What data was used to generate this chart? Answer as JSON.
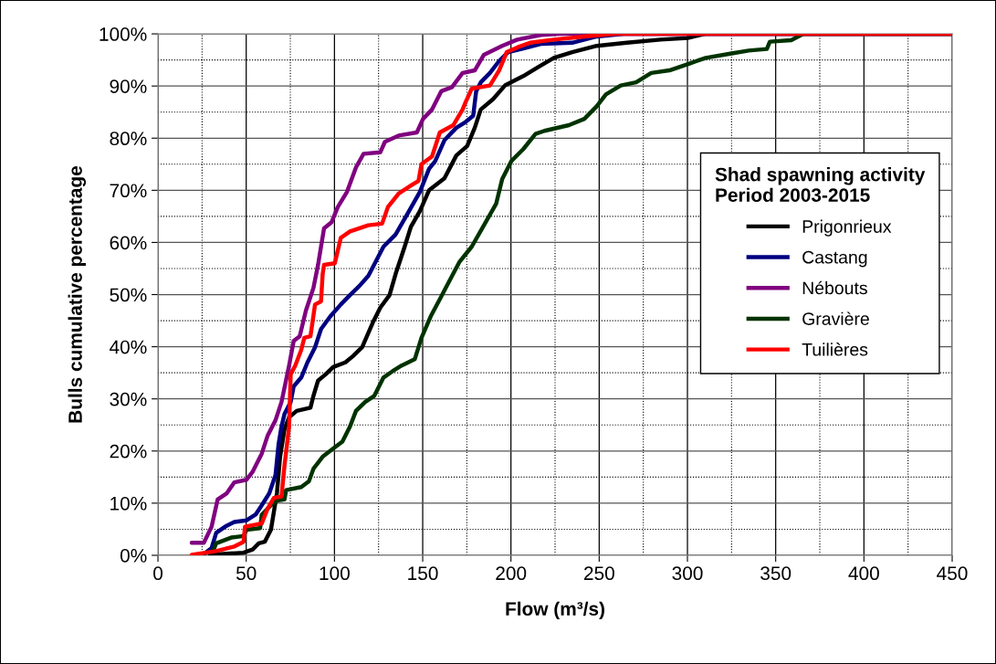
{
  "chart_data": {
    "type": "line",
    "xlabel": "Flow (m³/s)",
    "ylabel": "Bulls cumulative percentage",
    "legend_title": "Shad spawning activity\nPeriod 2003-2015",
    "xlim": [
      0,
      450
    ],
    "xticks": [
      0,
      50,
      100,
      150,
      200,
      250,
      300,
      350,
      400,
      450
    ],
    "ylim": [
      0,
      100
    ],
    "yticks": [
      {
        "value": 0,
        "label": "0%"
      },
      {
        "value": 10,
        "label": "10%"
      },
      {
        "value": 20,
        "label": "20%"
      },
      {
        "value": 30,
        "label": "30%"
      },
      {
        "value": 40,
        "label": "40%"
      },
      {
        "value": 50,
        "label": "50%"
      },
      {
        "value": 60,
        "label": "60%"
      },
      {
        "value": 70,
        "label": "70%"
      },
      {
        "value": 80,
        "label": "80%"
      },
      {
        "value": 90,
        "label": "90%"
      },
      {
        "value": 100,
        "label": "100%"
      }
    ],
    "grid": true,
    "legend": "right",
    "marker": "none",
    "line_style": "solid",
    "series": [
      {
        "name": "Prigonrieux",
        "color": "#000000",
        "x": [
          29.5,
          48.5,
          53.6,
          57.1,
          60.5,
          64,
          65.7,
          67.4,
          69.2,
          71.7,
          74.3,
          78.6,
          86.4,
          88.1,
          90.7,
          95,
          99.3,
          106.2,
          110.5,
          115.7,
          121.7,
          126,
          131.2,
          134.6,
          139.8,
          143.3,
          148.4,
          153.6,
          162.3,
          169.1,
          175.2,
          179.5,
          182.9,
          189.9,
          196.6,
          207,
          215.7,
          224.3,
          234.7,
          248.6,
          265.7,
          284.7,
          300.2,
          310,
          450
        ],
        "values": [
          0.1,
          0.5,
          1.1,
          2.3,
          2.6,
          4.9,
          8.4,
          11.9,
          18.9,
          24.2,
          26.5,
          27.7,
          28.3,
          30.6,
          33.5,
          34.7,
          36.1,
          37,
          38.2,
          39.9,
          44.6,
          47.5,
          49.9,
          53.9,
          59.2,
          63,
          66,
          70,
          72.3,
          76.7,
          78.5,
          82,
          85.5,
          87.5,
          90.1,
          91.9,
          93.7,
          95.4,
          96.5,
          97.7,
          98.3,
          98.9,
          99.2,
          100,
          100
        ]
      },
      {
        "name": "Castang",
        "color": "#000080",
        "x": [
          26,
          30.4,
          33,
          38.1,
          43.3,
          50.2,
          55.3,
          58.8,
          63.1,
          66.6,
          68.3,
          70,
          71.7,
          75.2,
          76.9,
          81.2,
          84.7,
          89,
          92.4,
          97.6,
          103.6,
          108.8,
          114,
          119.2,
          127.8,
          134.6,
          141.6,
          148.4,
          153.6,
          157.1,
          162.3,
          169.1,
          174.3,
          178.6,
          180.3,
          182.9,
          188.1,
          193.3,
          198.4,
          207,
          217.4,
          234.7,
          248.6,
          264,
          450
        ],
        "values": [
          0.2,
          1.4,
          4.3,
          5.5,
          6.4,
          6.7,
          7.8,
          9.6,
          11.9,
          15.4,
          21.2,
          24.7,
          27.1,
          29.4,
          32.4,
          34.1,
          37,
          39.9,
          43.4,
          45.8,
          48.1,
          49.9,
          51.6,
          53.6,
          59.2,
          61.5,
          65.6,
          69.7,
          74.1,
          75.6,
          79.6,
          82,
          83.1,
          84.3,
          89,
          90.7,
          92.5,
          94.8,
          96.5,
          97.2,
          98.1,
          98.3,
          99.5,
          100,
          100
        ]
      },
      {
        "name": "Nébouts",
        "color": "#800080",
        "x": [
          19.1,
          26,
          30.4,
          33.8,
          39,
          43.3,
          50.2,
          53.6,
          58.8,
          62.2,
          66.6,
          70,
          74.3,
          76.9,
          80.3,
          83.8,
          88.1,
          90.7,
          94.1,
          98.4,
          101.9,
          107.1,
          112.2,
          116.5,
          126,
          128.6,
          136.4,
          146.7,
          150.2,
          155.3,
          160.5,
          166.6,
          172.6,
          179.5,
          184.7,
          195,
          203.6,
          217,
          227.6,
          450
        ],
        "values": [
          2.4,
          2.4,
          5.5,
          10.7,
          11.9,
          14,
          14.5,
          16,
          19.5,
          23,
          25.9,
          29.4,
          36.4,
          41.1,
          42,
          46.9,
          51.3,
          55.7,
          62.7,
          63.9,
          66.8,
          69.7,
          74.4,
          77,
          77.3,
          79.3,
          80.5,
          81.1,
          83.7,
          85.5,
          89,
          89.8,
          92.5,
          93,
          96,
          97.7,
          98.9,
          99.8,
          100,
          100
        ]
      },
      {
        "name": "Gravière",
        "color": "#003300",
        "x": [
          31.2,
          33,
          41.5,
          48.5,
          50.2,
          57.9,
          58.8,
          64,
          67.4,
          71.7,
          72.6,
          81.2,
          85.5,
          88.1,
          93.3,
          100.2,
          104.5,
          108.8,
          112.2,
          117.4,
          122.6,
          127.8,
          132.9,
          138.1,
          145.5,
          149.3,
          154.5,
          160,
          165.7,
          170.9,
          177.8,
          184.7,
          191.6,
          195,
          200.2,
          207,
          213.9,
          219,
          232.9,
          241.6,
          248.6,
          253.8,
          262.2,
          270.9,
          279.5,
          289.8,
          301.9,
          310.4,
          324.3,
          334.7,
          345,
          346.7,
          358.8,
          364,
          365.7,
          450
        ],
        "values": [
          0.8,
          2.3,
          3.4,
          3.7,
          4.9,
          5.2,
          7.8,
          9.6,
          10.5,
          10.7,
          12.5,
          13.1,
          14.2,
          16.6,
          18.9,
          20.7,
          21.8,
          24.7,
          27.7,
          29.4,
          30.6,
          34.1,
          35.3,
          36.4,
          37.6,
          41.7,
          45.8,
          49.3,
          53,
          56.3,
          59.2,
          63.3,
          67.4,
          72.1,
          75.6,
          77.9,
          80.8,
          81.4,
          82.5,
          83.7,
          86.1,
          88.4,
          90.1,
          90.7,
          92.5,
          93,
          94.4,
          95.4,
          96.2,
          96.8,
          97.1,
          98.5,
          98.8,
          99.7,
          100,
          100
        ]
      },
      {
        "name": "Tuilières",
        "color": "#ff0000",
        "x": [
          19.1,
          33,
          43.3,
          48.5,
          49.3,
          58.8,
          62.2,
          65.7,
          70,
          71.7,
          74.3,
          75.2,
          77.8,
          81.2,
          82.9,
          86.4,
          89,
          92.4,
          93.3,
          94.1,
          100.2,
          103.6,
          108.8,
          119.2,
          127,
          130.3,
          136.4,
          143.3,
          147.6,
          149.3,
          155.3,
          159.7,
          167.4,
          172.6,
          174.3,
          177.8,
          188.1,
          193.3,
          197.6,
          203.6,
          210.8,
          224.3,
          241.6,
          258.8,
          450
        ],
        "values": [
          0.1,
          0.8,
          1.7,
          2.6,
          5.5,
          6.1,
          9,
          11,
          11.3,
          17.2,
          24.7,
          34.7,
          36.4,
          39.4,
          41.7,
          42,
          48.1,
          48.7,
          53.9,
          55.7,
          56,
          60.9,
          62.1,
          63.3,
          63.6,
          66.8,
          69.4,
          70.9,
          71.8,
          75,
          76.5,
          81.1,
          82.5,
          85.5,
          86.9,
          89.5,
          90.1,
          93,
          96.5,
          97.4,
          98.3,
          98.9,
          99.5,
          100,
          100
        ]
      }
    ]
  }
}
